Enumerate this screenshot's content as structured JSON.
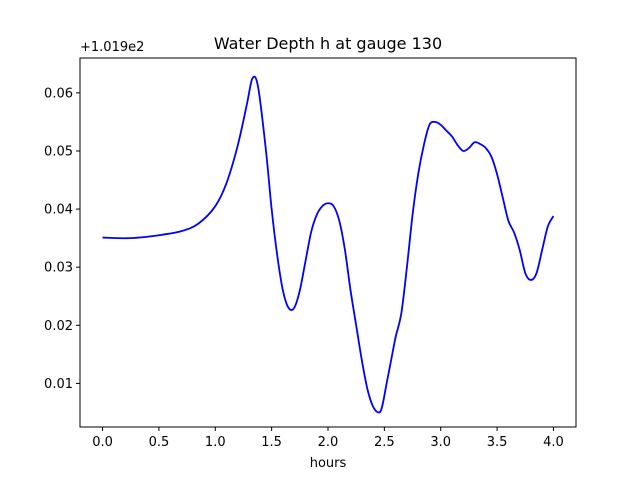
{
  "chart_data": {
    "type": "line",
    "title": "Water Depth h at gauge 130",
    "xlabel": "hours",
    "ylabel": "",
    "y_offset_label": "+1.019e2",
    "xlim": [
      -0.2,
      4.2
    ],
    "ylim": [
      0.0025,
      0.066
    ],
    "x_ticks": [
      0.0,
      0.5,
      1.0,
      1.5,
      2.0,
      2.5,
      3.0,
      3.5,
      4.0
    ],
    "x_tick_labels": [
      "0.0",
      "0.5",
      "1.0",
      "1.5",
      "2.0",
      "2.5",
      "3.0",
      "3.5",
      "4.0"
    ],
    "y_ticks": [
      0.01,
      0.02,
      0.03,
      0.04,
      0.05,
      0.06
    ],
    "y_tick_labels": [
      "0.01",
      "0.02",
      "0.03",
      "0.04",
      "0.05",
      "0.06"
    ],
    "grid": false,
    "colors": {
      "line": "#0000ff",
      "axes": "#000000",
      "background": "#ffffff"
    },
    "series": [
      {
        "x": [
          0.0,
          0.25,
          0.5,
          0.7,
          0.85,
          1.0,
          1.1,
          1.2,
          1.28,
          1.33,
          1.38,
          1.45,
          1.5,
          1.55,
          1.6,
          1.65,
          1.7,
          1.75,
          1.8,
          1.85,
          1.9,
          1.95,
          2.0,
          2.05,
          2.1,
          2.15,
          2.2,
          2.25,
          2.3,
          2.35,
          2.4,
          2.45,
          2.48,
          2.52,
          2.56,
          2.6,
          2.65,
          2.7,
          2.75,
          2.8,
          2.85,
          2.9,
          2.95,
          3.0,
          3.05,
          3.1,
          3.15,
          3.2,
          3.25,
          3.3,
          3.35,
          3.4,
          3.45,
          3.5,
          3.55,
          3.6,
          3.65,
          3.7,
          3.75,
          3.8,
          3.85,
          3.9,
          3.95,
          4.0
        ],
        "y": [
          0.0351,
          0.035,
          0.0355,
          0.0362,
          0.0375,
          0.0405,
          0.0445,
          0.051,
          0.058,
          0.0625,
          0.061,
          0.05,
          0.04,
          0.032,
          0.026,
          0.023,
          0.023,
          0.026,
          0.031,
          0.036,
          0.039,
          0.0405,
          0.041,
          0.0405,
          0.038,
          0.033,
          0.026,
          0.02,
          0.014,
          0.009,
          0.006,
          0.005,
          0.006,
          0.01,
          0.014,
          0.018,
          0.022,
          0.03,
          0.039,
          0.046,
          0.051,
          0.0545,
          0.055,
          0.0545,
          0.0535,
          0.0525,
          0.051,
          0.05,
          0.0505,
          0.0515,
          0.0512,
          0.0505,
          0.049,
          0.046,
          0.042,
          0.038,
          0.036,
          0.033,
          0.029,
          0.0278,
          0.029,
          0.033,
          0.037,
          0.0388
        ]
      }
    ]
  }
}
